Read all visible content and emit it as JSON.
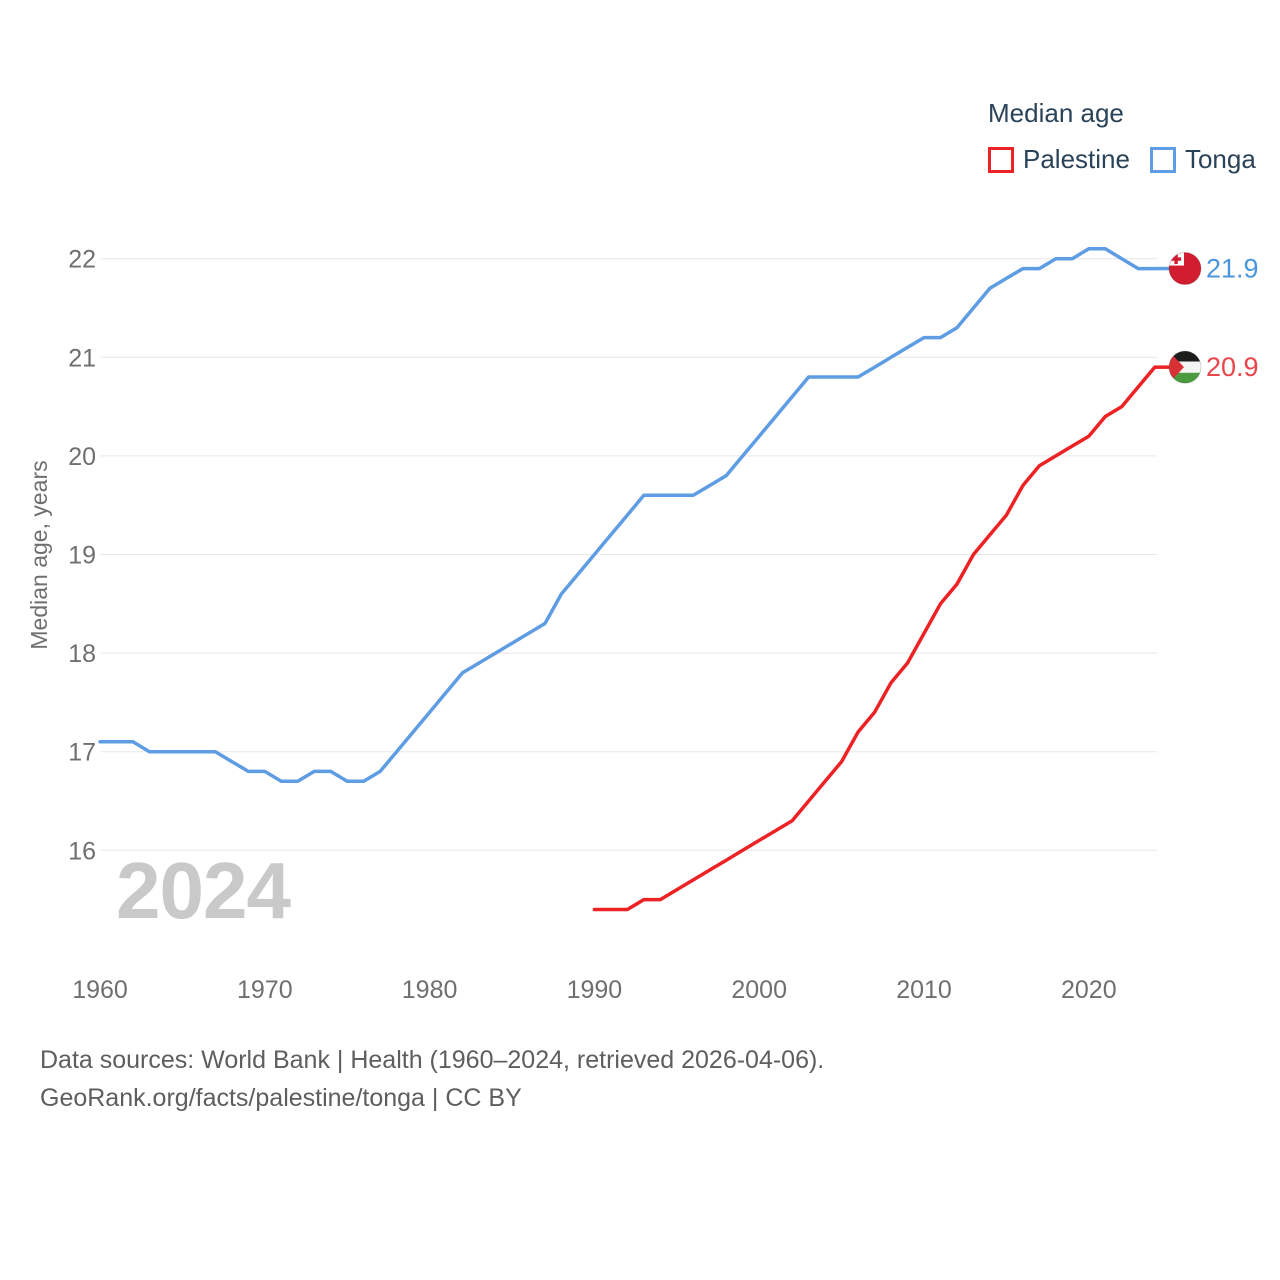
{
  "legend": {
    "title": "Median age",
    "items": [
      {
        "label": "Palestine",
        "color": "#ed2224"
      },
      {
        "label": "Tonga",
        "color": "#5e9de4"
      }
    ]
  },
  "watermark": "2024",
  "footer": {
    "line1": "Data sources: World Bank | Health (1960–2024, retrieved 2026-04-06).",
    "line2": "GeoRank.org/facts/palestine/tonga | CC BY"
  },
  "chart_data": {
    "type": "line",
    "title": "Median age",
    "ylabel": "Median age, years",
    "xlabel": "",
    "grid": "horizontal",
    "legend_position": "top-right",
    "ylim": [
      15.1,
      22.6
    ],
    "xlim": [
      1958,
      2029
    ],
    "y_ticks": [
      16,
      17,
      18,
      19,
      20,
      21,
      22
    ],
    "x_ticks": [
      1960,
      1970,
      1980,
      1990,
      2000,
      2010,
      2020
    ],
    "series": [
      {
        "name": "Tonga",
        "color": "#5e9de4",
        "label_color": "#4b96dd",
        "flag": "tonga",
        "end_label": "21.9",
        "start_year": 1960,
        "values": [
          17.1,
          17.1,
          17.1,
          17.0,
          17.0,
          17.0,
          17.0,
          17.0,
          16.9,
          16.8,
          16.8,
          16.7,
          16.7,
          16.8,
          16.8,
          16.7,
          16.7,
          16.8,
          17.0,
          17.2,
          17.4,
          17.6,
          17.8,
          17.9,
          18.0,
          18.1,
          18.2,
          18.3,
          18.6,
          18.8,
          19.0,
          19.2,
          19.4,
          19.6,
          19.6,
          19.6,
          19.6,
          19.7,
          19.8,
          20.0,
          20.2,
          20.4,
          20.6,
          20.8,
          20.8,
          20.8,
          20.8,
          20.9,
          21.0,
          21.1,
          21.2,
          21.2,
          21.3,
          21.5,
          21.7,
          21.8,
          21.9,
          21.9,
          22.0,
          22.0,
          22.1,
          22.1,
          22.0,
          21.9,
          21.9
        ]
      },
      {
        "name": "Palestine",
        "color": "#ed2224",
        "label_color": "#e8464b",
        "flag": "palestine",
        "end_label": "20.9",
        "start_year": 1990,
        "values": [
          15.4,
          15.4,
          15.4,
          15.5,
          15.5,
          15.6,
          15.7,
          15.8,
          15.9,
          16.0,
          16.1,
          16.2,
          16.3,
          16.5,
          16.7,
          16.9,
          17.2,
          17.4,
          17.7,
          17.9,
          18.2,
          18.5,
          18.7,
          19.0,
          19.2,
          19.4,
          19.7,
          19.9,
          20.0,
          20.1,
          20.2,
          20.4,
          20.5,
          20.7,
          20.9
        ]
      }
    ]
  }
}
